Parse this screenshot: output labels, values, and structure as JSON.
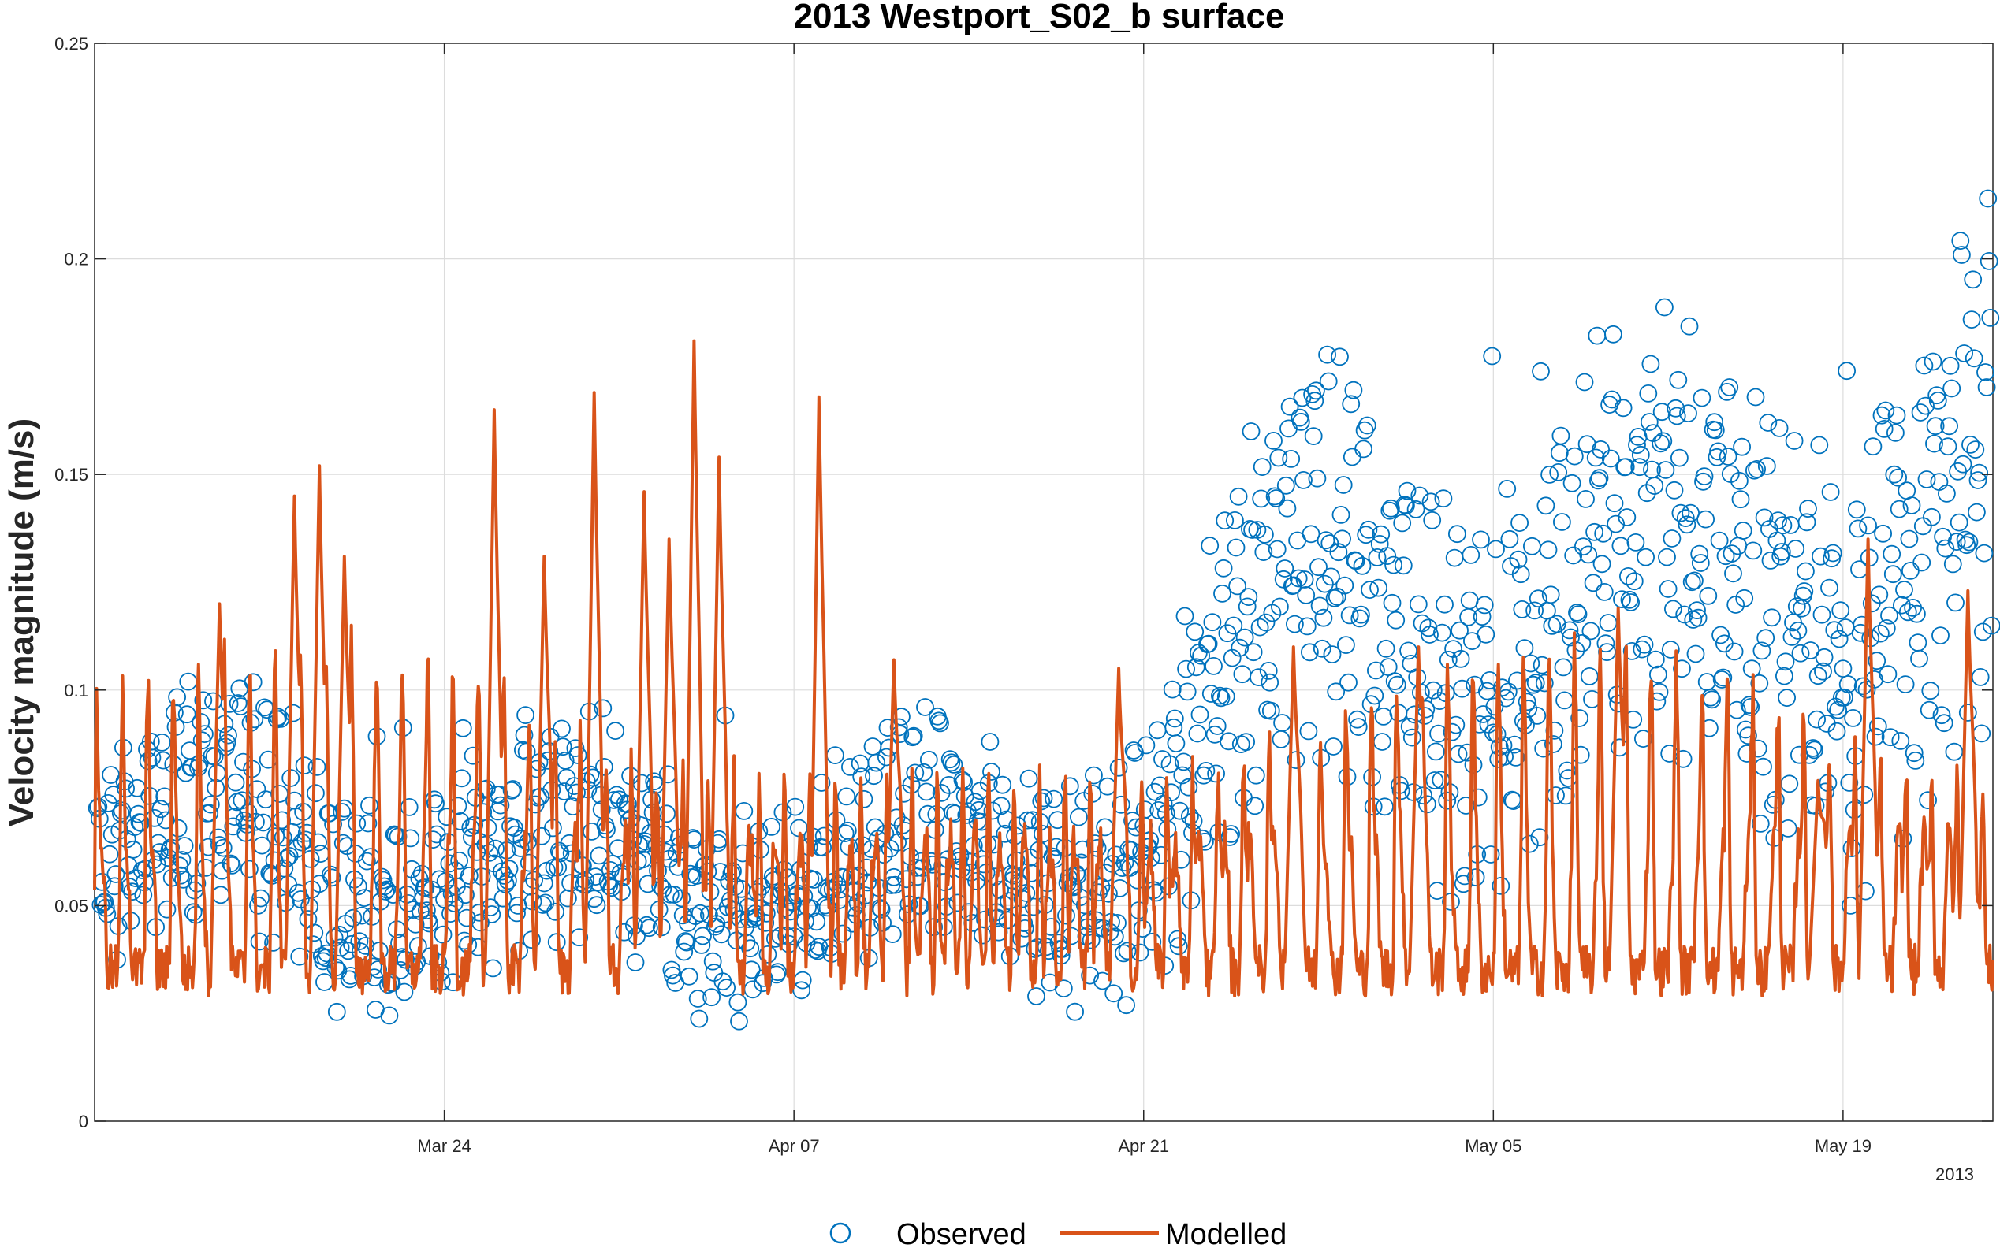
{
  "chart_data": {
    "type": "scatter",
    "title": "2013 Westport_S02_b surface",
    "xlabel": "",
    "ylabel": "Velocity magnitude (m/s)",
    "x_axis_year_label": "2013",
    "x_axis_type": "date",
    "xlim": [
      "2013-03-10",
      "2013-05-25"
    ],
    "xticks": [
      {
        "date": "2013-03-24",
        "label": "Mar 24"
      },
      {
        "date": "2013-04-07",
        "label": "Apr 07"
      },
      {
        "date": "2013-04-21",
        "label": "Apr 21"
      },
      {
        "date": "2013-05-05",
        "label": "May 05"
      },
      {
        "date": "2013-05-19",
        "label": "May 19"
      }
    ],
    "ylim": [
      0,
      0.25
    ],
    "yticks": [
      0,
      0.05,
      0.1,
      0.15,
      0.2,
      0.25
    ],
    "ytick_labels": [
      "0",
      "0.05",
      "0.1",
      "0.15",
      "0.2",
      "0.25"
    ],
    "grid": true,
    "legend_position": "bottom",
    "series": [
      {
        "name": "Observed",
        "style": "open-circle",
        "color": "#0072BD",
        "approx_envelope": {
          "dates": [
            "2013-03-10",
            "2013-03-14",
            "2013-03-18",
            "2013-03-22",
            "2013-03-26",
            "2013-03-30",
            "2013-04-03",
            "2013-04-07",
            "2013-04-11",
            "2013-04-15",
            "2013-04-19",
            "2013-04-23",
            "2013-04-27",
            "2013-05-01",
            "2013-05-05",
            "2013-05-09",
            "2013-05-13",
            "2013-05-17",
            "2013-05-21",
            "2013-05-25"
          ],
          "mean": [
            0.055,
            0.06,
            0.07,
            0.062,
            0.055,
            0.058,
            0.06,
            0.06,
            0.055,
            0.055,
            0.07,
            0.09,
            0.105,
            0.115,
            0.13,
            0.12,
            0.105,
            0.125,
            0.15,
            0.13
          ]
        }
      },
      {
        "name": "Modelled",
        "style": "line",
        "color": "#D95319",
        "peaks": [
          {
            "date": "2013-03-15",
            "value": 0.12
          },
          {
            "date": "2013-03-18",
            "value": 0.145
          },
          {
            "date": "2013-03-19",
            "value": 0.152
          },
          {
            "date": "2013-03-20",
            "value": 0.131
          },
          {
            "date": "2013-03-26",
            "value": 0.165
          },
          {
            "date": "2013-03-28",
            "value": 0.131
          },
          {
            "date": "2013-03-30",
            "value": 0.169
          },
          {
            "date": "2013-04-01",
            "value": 0.146
          },
          {
            "date": "2013-04-02",
            "value": 0.135
          },
          {
            "date": "2013-04-03",
            "value": 0.181
          },
          {
            "date": "2013-04-04",
            "value": 0.154
          },
          {
            "date": "2013-04-08",
            "value": 0.168
          },
          {
            "date": "2013-04-11",
            "value": 0.107
          },
          {
            "date": "2013-04-20",
            "value": 0.105
          },
          {
            "date": "2013-04-27",
            "value": 0.11
          },
          {
            "date": "2013-05-02",
            "value": 0.11
          },
          {
            "date": "2013-05-10",
            "value": 0.119
          },
          {
            "date": "2013-05-18",
            "value": 0.079
          },
          {
            "date": "2013-05-20",
            "value": 0.135
          },
          {
            "date": "2013-05-24",
            "value": 0.123
          }
        ]
      }
    ]
  }
}
